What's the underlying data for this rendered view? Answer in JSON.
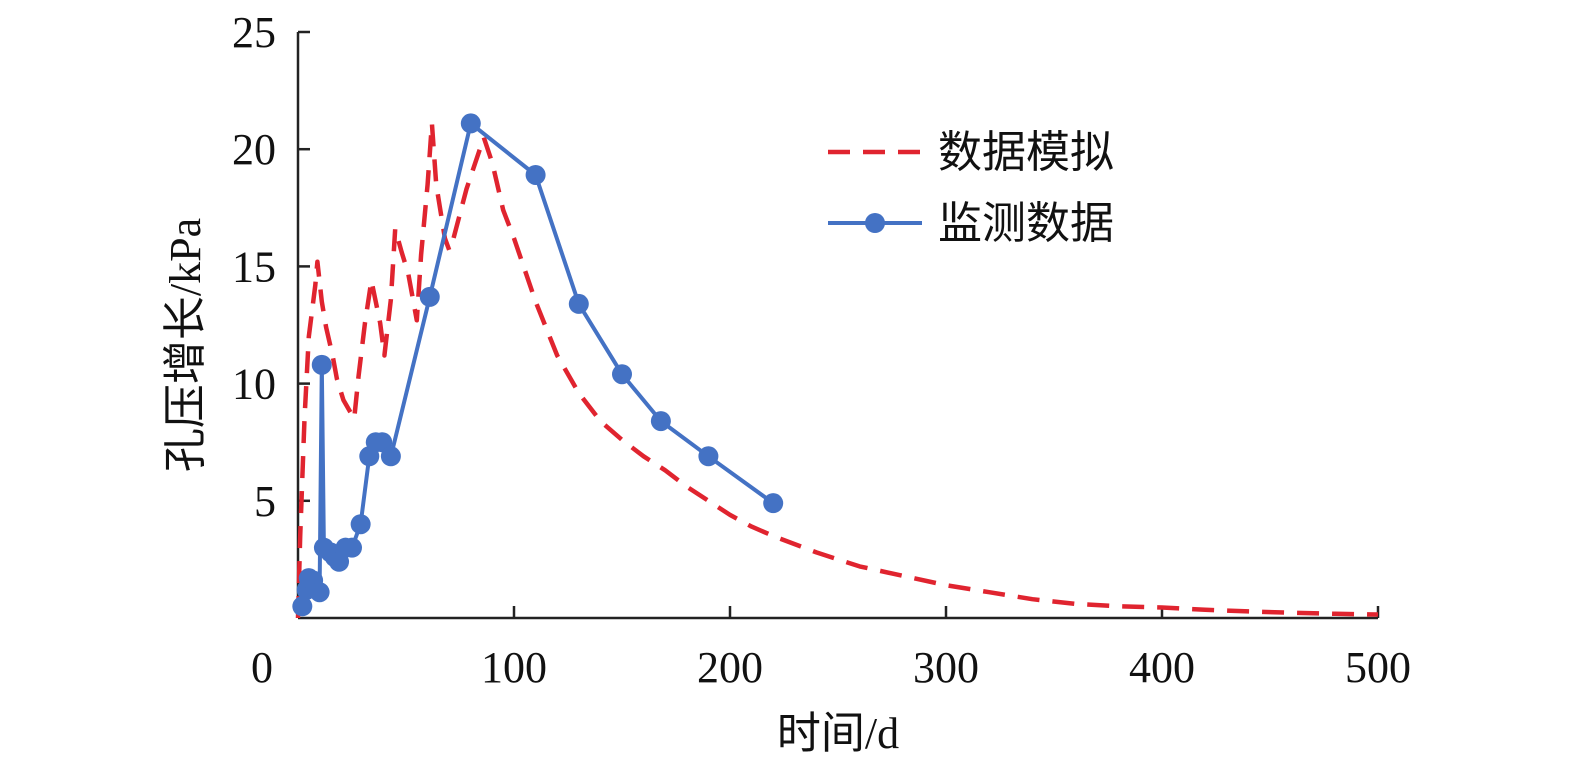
{
  "chart_data": {
    "type": "line",
    "xlabel": "时间/d",
    "ylabel": "孔压增长/kPa",
    "xlim": [
      0,
      500
    ],
    "ylim": [
      0,
      25
    ],
    "xticks": [
      "0",
      "100",
      "200",
      "300",
      "400",
      "500"
    ],
    "yticks": [
      "5",
      "10",
      "15",
      "20",
      "25"
    ],
    "grid": false,
    "legend_position": "top-right",
    "series": [
      {
        "name": "数据模拟",
        "style": "dashed",
        "color": "#E0242F",
        "points": [
          [
            0,
            0
          ],
          [
            1,
            3.5
          ],
          [
            3,
            8.5
          ],
          [
            5,
            12
          ],
          [
            8,
            14.2
          ],
          [
            9,
            15.2
          ],
          [
            11,
            13.5
          ],
          [
            13,
            12.4
          ],
          [
            16,
            11.2
          ],
          [
            18,
            10.2
          ],
          [
            21,
            9.3
          ],
          [
            26,
            8.5
          ],
          [
            28,
            10.3
          ],
          [
            31,
            12.6
          ],
          [
            34,
            14.4
          ],
          [
            38,
            12.6
          ],
          [
            40,
            11.2
          ],
          [
            43,
            13.6
          ],
          [
            45,
            16.6
          ],
          [
            48,
            15.6
          ],
          [
            51,
            14.7
          ],
          [
            55,
            12.7
          ],
          [
            57,
            15.5
          ],
          [
            60,
            18.5
          ],
          [
            62,
            21.1
          ],
          [
            64,
            18.5
          ],
          [
            68,
            16.2
          ],
          [
            70,
            15.7
          ],
          [
            72,
            16.2
          ],
          [
            78,
            18.3
          ],
          [
            82,
            19.4
          ],
          [
            86,
            20.5
          ],
          [
            90,
            19.4
          ],
          [
            95,
            17.4
          ],
          [
            100,
            16.2
          ],
          [
            110,
            13.5
          ],
          [
            120,
            11.2
          ],
          [
            130,
            9.6
          ],
          [
            140,
            8.4
          ],
          [
            150,
            7.6
          ],
          [
            160,
            6.9
          ],
          [
            170,
            6.3
          ],
          [
            180,
            5.6
          ],
          [
            190,
            5.0
          ],
          [
            200,
            4.4
          ],
          [
            210,
            3.9
          ],
          [
            220,
            3.5
          ],
          [
            240,
            2.8
          ],
          [
            260,
            2.2
          ],
          [
            280,
            1.8
          ],
          [
            300,
            1.4
          ],
          [
            320,
            1.1
          ],
          [
            340,
            0.8
          ],
          [
            360,
            0.6
          ],
          [
            380,
            0.5
          ],
          [
            400,
            0.45
          ],
          [
            420,
            0.35
          ],
          [
            440,
            0.28
          ],
          [
            460,
            0.22
          ],
          [
            480,
            0.18
          ],
          [
            500,
            0.15
          ]
        ]
      },
      {
        "name": "监测数据",
        "style": "solid-markers",
        "color": "#4472C4",
        "points": [
          [
            2,
            0.5
          ],
          [
            4,
            1.2
          ],
          [
            5,
            1.7
          ],
          [
            7,
            1.6
          ],
          [
            10,
            1.1
          ],
          [
            11,
            10.8
          ],
          [
            12,
            3.0
          ],
          [
            15,
            2.8
          ],
          [
            17,
            2.6
          ],
          [
            19,
            2.4
          ],
          [
            22,
            3.0
          ],
          [
            25,
            3.0
          ],
          [
            29,
            4.0
          ],
          [
            33,
            6.9
          ],
          [
            36,
            7.5
          ],
          [
            39,
            7.5
          ],
          [
            43,
            6.9
          ],
          [
            61,
            13.7
          ],
          [
            80,
            21.1
          ],
          [
            110,
            18.9
          ],
          [
            130,
            13.4
          ],
          [
            150,
            10.4
          ],
          [
            168,
            8.4
          ],
          [
            190,
            6.9
          ],
          [
            220,
            4.9
          ]
        ]
      }
    ]
  }
}
